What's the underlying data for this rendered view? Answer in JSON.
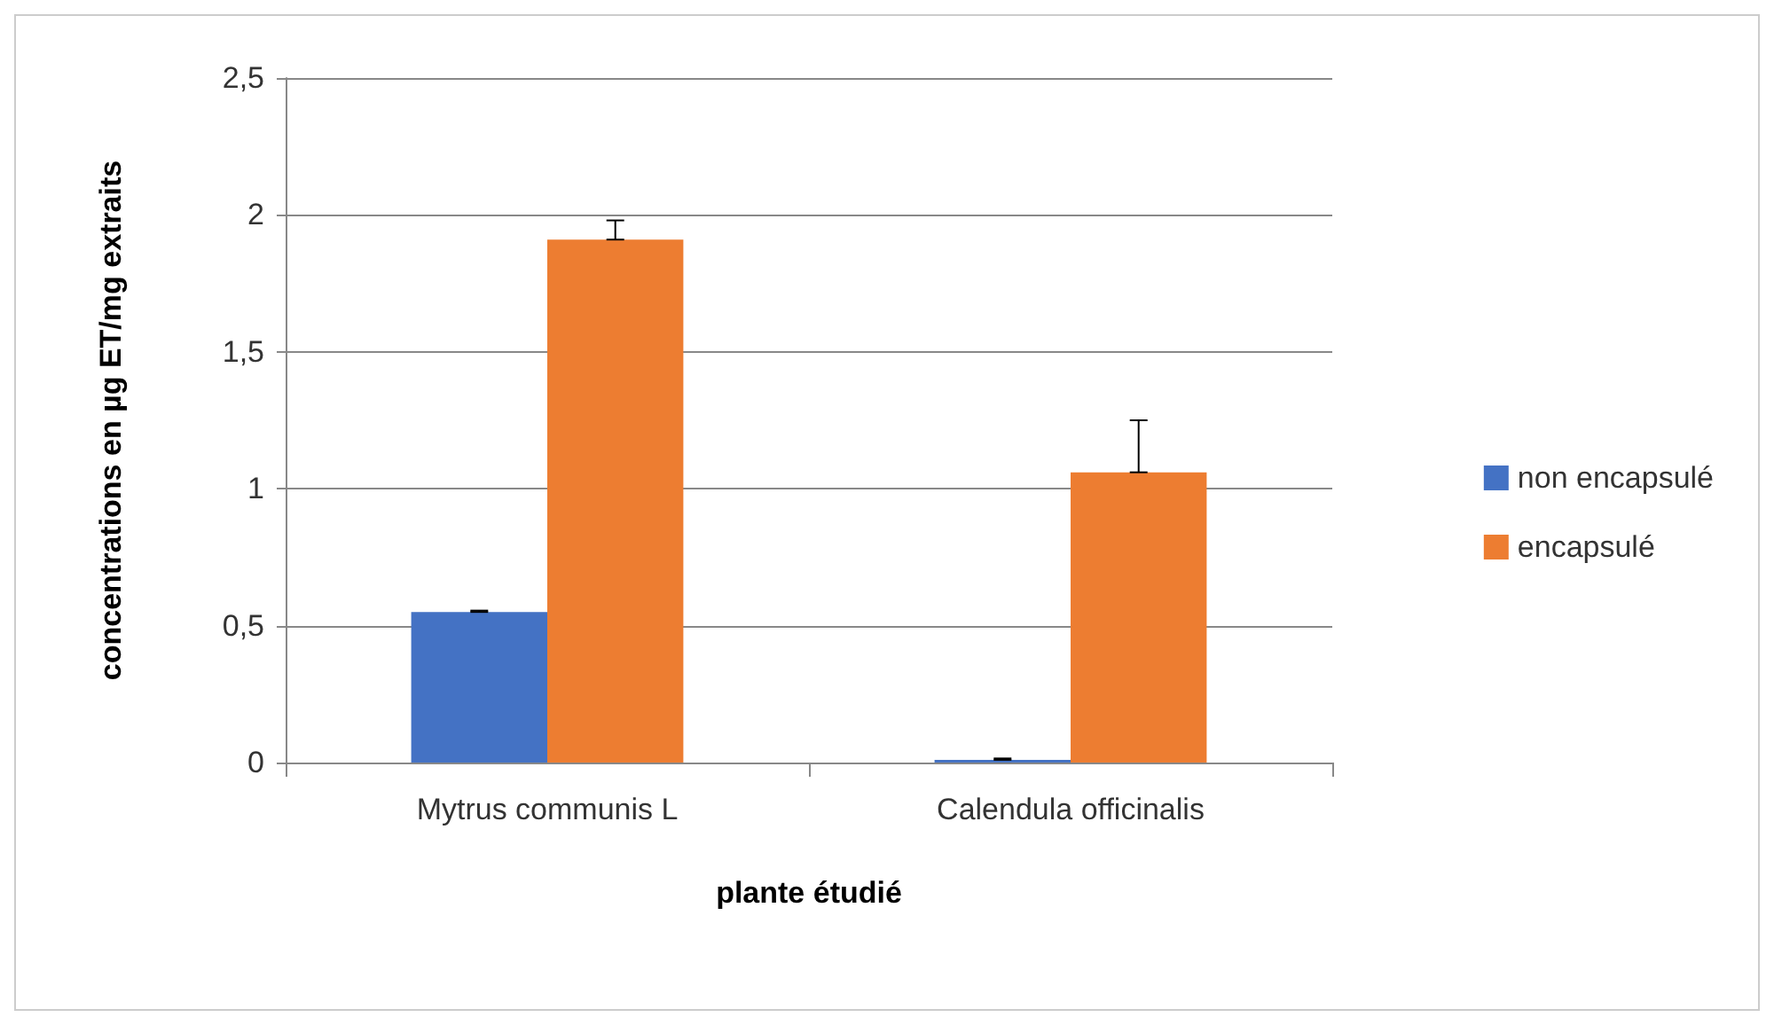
{
  "chart_data": {
    "type": "bar",
    "xlabel": "plante étudié",
    "ylabel": "concentrations en µg ET/mg extraits",
    "categories": [
      "Mytrus communis L",
      "Calendula officinalis"
    ],
    "series": [
      {
        "name": "non encapsulé",
        "color": "#4472c4",
        "values": [
          0.55,
          0.01
        ],
        "errors": [
          [
            0.55,
            0.555
          ],
          [
            0.01,
            0.015
          ]
        ]
      },
      {
        "name": "encapsulé",
        "color": "#ed7d31",
        "values": [
          1.91,
          1.06
        ],
        "errors": [
          [
            1.91,
            1.98
          ],
          [
            1.06,
            1.25
          ]
        ]
      }
    ],
    "ylim": [
      0,
      2.5
    ],
    "yticks": [
      0,
      {
        "value": 0.5,
        "label": "0,5"
      },
      1,
      {
        "value": 1.5,
        "label": "1,5"
      },
      2,
      {
        "value": 2.5,
        "label": "2,5"
      }
    ],
    "grid": "y",
    "legend": "right"
  }
}
